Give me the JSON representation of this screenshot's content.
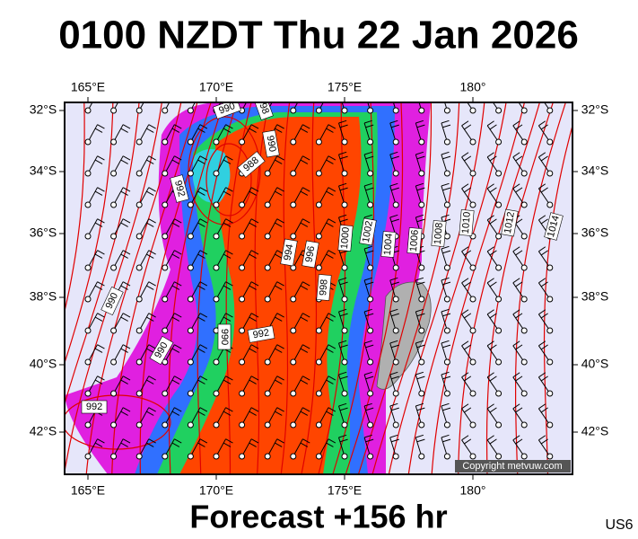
{
  "header": {
    "title": "0100 NZDT Thu 22 Jan 2026"
  },
  "map": {
    "lon_labels": [
      "165°E",
      "170°E",
      "175°E",
      "180°"
    ],
    "lat_labels": [
      "32°S",
      "34°S",
      "36°S",
      "38°S",
      "40°S",
      "42°S"
    ],
    "isobar_labels": [
      "990",
      "998",
      "990",
      "988",
      "992",
      "994",
      "996",
      "1000",
      "1002",
      "1004",
      "1006",
      "1008",
      "1010",
      "1012",
      "1014",
      "998",
      "990",
      "990",
      "992",
      "990",
      "992"
    ],
    "copyright": "Copyright metvuw.com"
  },
  "footer": {
    "forecast": "Forecast +156 hr",
    "region": "US6"
  }
}
